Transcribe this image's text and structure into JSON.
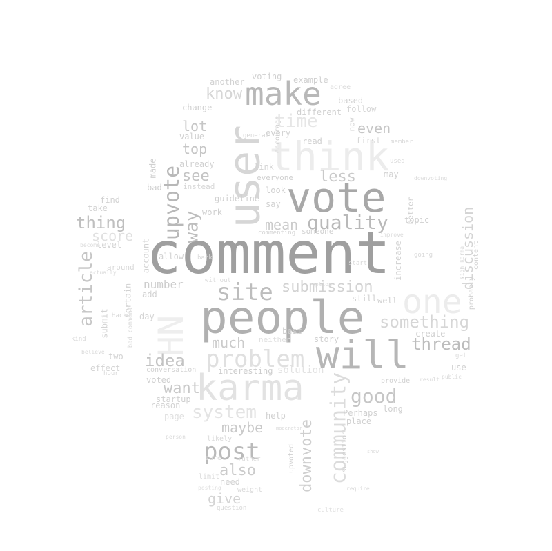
{
  "words": [
    {
      "text": "comment",
      "color": "#9f9f9f"
    },
    {
      "text": "people",
      "color": "#b0b0b0"
    },
    {
      "text": "vote",
      "color": "#a8a8a8"
    },
    {
      "text": "user",
      "color": "#d6d6d6"
    },
    {
      "text": "think",
      "color": "#ececec"
    },
    {
      "text": "make",
      "color": "#b8b8b8"
    },
    {
      "text": "karma",
      "color": "#e2e2e2"
    },
    {
      "text": "will",
      "color": "#b6b6b6"
    },
    {
      "text": "one",
      "color": "#ececec"
    },
    {
      "text": "HN",
      "color": "#eeeeee"
    },
    {
      "text": "site",
      "color": "#bdbdbd"
    },
    {
      "text": "problem",
      "color": "#e0e0e0"
    },
    {
      "text": "post",
      "color": "#bababa"
    },
    {
      "text": "upvote",
      "color": "#b8b8b8"
    },
    {
      "text": "quality",
      "color": "#b9b9b9"
    },
    {
      "text": "community",
      "color": "#dcdcdc"
    },
    {
      "text": "good",
      "color": "#c6c6c6"
    },
    {
      "text": "article",
      "color": "#c6c6c6"
    },
    {
      "text": "thread",
      "color": "#bdbdbd"
    },
    {
      "text": "something",
      "color": "#d6d6d6"
    },
    {
      "text": "submission",
      "color": "#d2d2d2"
    },
    {
      "text": "way",
      "color": "#bebebe"
    },
    {
      "text": "thing",
      "color": "#bfbfbf"
    },
    {
      "text": "system",
      "color": "#e4e4e4"
    },
    {
      "text": "discussion",
      "color": "#d4d4d4"
    },
    {
      "text": "downvote",
      "color": "#cfcfcf"
    },
    {
      "text": "idea",
      "color": "#c3c3c3"
    },
    {
      "text": "see",
      "color": "#c4c4c4"
    },
    {
      "text": "want",
      "color": "#c9c9c9"
    },
    {
      "text": "time",
      "color": "#e6e6e6"
    },
    {
      "text": "less",
      "color": "#c9c9c9"
    },
    {
      "text": "much",
      "color": "#cbcbcb"
    },
    {
      "text": "also",
      "color": "#cbcbcb"
    },
    {
      "text": "maybe",
      "color": "#c9c9c9"
    },
    {
      "text": "know",
      "color": "#d6d6d6"
    },
    {
      "text": "mean",
      "color": "#cbcbcb"
    },
    {
      "text": "even",
      "color": "#c6c6c6"
    },
    {
      "text": "lot",
      "color": "#c6c6c6"
    },
    {
      "text": "top",
      "color": "#c6c6c6"
    },
    {
      "text": "give",
      "color": "#d4d4d4"
    },
    {
      "text": "score",
      "color": "#e0e0e0"
    },
    {
      "text": "number",
      "color": "#cdcdcd"
    },
    {
      "text": "interesting",
      "color": "#cdcdcd"
    },
    {
      "text": "solution",
      "color": "#e2e2e2"
    },
    {
      "text": "account",
      "color": "#d2d2d2"
    },
    {
      "text": "different",
      "color": "#cfcfcf"
    },
    {
      "text": "example",
      "color": "#d0d0d0"
    },
    {
      "text": "another",
      "color": "#d2d2d2"
    },
    {
      "text": "voting",
      "color": "#d0d0d0"
    },
    {
      "text": "change",
      "color": "#d0d0d0"
    },
    {
      "text": "value",
      "color": "#d0d0d0"
    },
    {
      "text": "already",
      "color": "#d0d0d0"
    },
    {
      "text": "made",
      "color": "#d0d0d0"
    },
    {
      "text": "bad",
      "color": "#d0d0d0"
    },
    {
      "text": "find",
      "color": "#d2d2d2"
    },
    {
      "text": "take",
      "color": "#d2d2d2"
    },
    {
      "text": "work",
      "color": "#d0d0d0"
    },
    {
      "text": "guideline",
      "color": "#d0d0d0"
    },
    {
      "text": "allow",
      "color": "#d2d2d2"
    },
    {
      "text": "level",
      "color": "#d4d4d4"
    },
    {
      "text": "add",
      "color": "#d2d2d2"
    },
    {
      "text": "certain",
      "color": "#d2d2d2"
    },
    {
      "text": "day",
      "color": "#d4d4d4"
    },
    {
      "text": "submit",
      "color": "#d4d4d4"
    },
    {
      "text": "two",
      "color": "#d2d2d2"
    },
    {
      "text": "effect",
      "color": "#d4d4d4"
    },
    {
      "text": "conversation",
      "color": "#d2d2d2"
    },
    {
      "text": "voted",
      "color": "#d0d0d0"
    },
    {
      "text": "startup",
      "color": "#d0d0d0"
    },
    {
      "text": "reason",
      "color": "#d2d2d2"
    },
    {
      "text": "page",
      "color": "#e0e0e0"
    },
    {
      "text": "help",
      "color": "#d0d0d0"
    },
    {
      "text": "best",
      "color": "#d0d0d0"
    },
    {
      "text": "story",
      "color": "#d0d0d0"
    },
    {
      "text": "still",
      "color": "#d0d0d0"
    },
    {
      "text": "well",
      "color": "#d2d2d2"
    },
    {
      "text": "increase",
      "color": "#d4d4d4"
    },
    {
      "text": "Perhaps",
      "color": "#d0d0d0"
    },
    {
      "text": "place",
      "color": "#d0d0d0"
    },
    {
      "text": "long",
      "color": "#d0d0d0"
    },
    {
      "text": "provide",
      "color": "#d2d2d2"
    },
    {
      "text": "suggestion",
      "color": "#d0d0d0"
    },
    {
      "text": "upvoted",
      "color": "#d0d0d0"
    },
    {
      "text": "need",
      "color": "#d2d2d2"
    },
    {
      "text": "topic",
      "color": "#d0d0d0"
    },
    {
      "text": "create",
      "color": "#d0d0d0"
    },
    {
      "text": "better",
      "color": "#d0d0d0"
    },
    {
      "text": "content",
      "color": "#d2d2d2"
    },
    {
      "text": "probably",
      "color": "#d2d2d2"
    },
    {
      "text": "use",
      "color": "#d0d0d0"
    },
    {
      "text": "look",
      "color": "#d0d0d0"
    },
    {
      "text": "link",
      "color": "#d4d4d4"
    },
    {
      "text": "everyone",
      "color": "#d0d0d0"
    },
    {
      "text": "say",
      "color": "#d0d0d0"
    },
    {
      "text": "someone",
      "color": "#d0d0d0"
    },
    {
      "text": "may",
      "color": "#d2d2d2"
    },
    {
      "text": "read",
      "color": "#d0d0d0"
    },
    {
      "text": "every",
      "color": "#d0d0d0"
    },
    {
      "text": "first",
      "color": "#d8d8d8"
    },
    {
      "text": "encourage",
      "color": "#d2d2d2"
    },
    {
      "text": "now",
      "color": "#d2d2d2"
    },
    {
      "text": "based",
      "color": "#d2d2d2"
    },
    {
      "text": "follow",
      "color": "#d6d6d6"
    },
    {
      "text": "agree",
      "color": "#dadada"
    },
    {
      "text": "member",
      "color": "#dadada"
    },
    {
      "text": "used",
      "color": "#dadada"
    },
    {
      "text": "going",
      "color": "#dadada"
    },
    {
      "text": "instead",
      "color": "#d6d6d6"
    },
    {
      "text": "around",
      "color": "#dadada"
    },
    {
      "text": "without",
      "color": "#dadada"
    },
    {
      "text": "likely",
      "color": "#dadada"
    },
    {
      "text": "sure",
      "color": "#dadada"
    },
    {
      "text": "limit",
      "color": "#dadada"
    },
    {
      "text": "weight",
      "color": "#dadada"
    },
    {
      "text": "question",
      "color": "#dadada"
    },
    {
      "text": "posting",
      "color": "#e0e0e0"
    },
    {
      "text": "bad comment",
      "color": "#dadada"
    },
    {
      "text": "person",
      "color": "#dadada"
    },
    {
      "text": "Hacker",
      "color": "#dadada"
    },
    {
      "text": "hour",
      "color": "#dadada"
    },
    {
      "text": "kind",
      "color": "#dadada"
    },
    {
      "text": "culture",
      "color": "#e0e0e0"
    },
    {
      "text": "require",
      "color": "#dadada"
    },
    {
      "text": "result",
      "color": "#dadada"
    },
    {
      "text": "high karma",
      "color": "#dadada"
    },
    {
      "text": "general",
      "color": "#d6d6d6"
    },
    {
      "text": "downvoting",
      "color": "#dadada"
    },
    {
      "text": "commenting",
      "color": "#d6d6d6"
    },
    {
      "text": "improve",
      "color": "#dadada"
    },
    {
      "text": "rather",
      "color": "#dadada"
    },
    {
      "text": "start",
      "color": "#dadada"
    },
    {
      "text": "public",
      "color": "#dadada"
    },
    {
      "text": "get",
      "color": "#dadada"
    },
    {
      "text": "become",
      "color": "#dadada"
    },
    {
      "text": "actually",
      "color": "#dadada"
    },
    {
      "text": "believe",
      "color": "#dadada"
    },
    {
      "text": "neither",
      "color": "#e0e0e0"
    },
    {
      "text": "back",
      "color": "#dadada"
    },
    {
      "text": "option",
      "color": "#dadada"
    },
    {
      "text": "show",
      "color": "#dadada"
    },
    {
      "text": "moderator",
      "color": "#dadada"
    }
  ]
}
